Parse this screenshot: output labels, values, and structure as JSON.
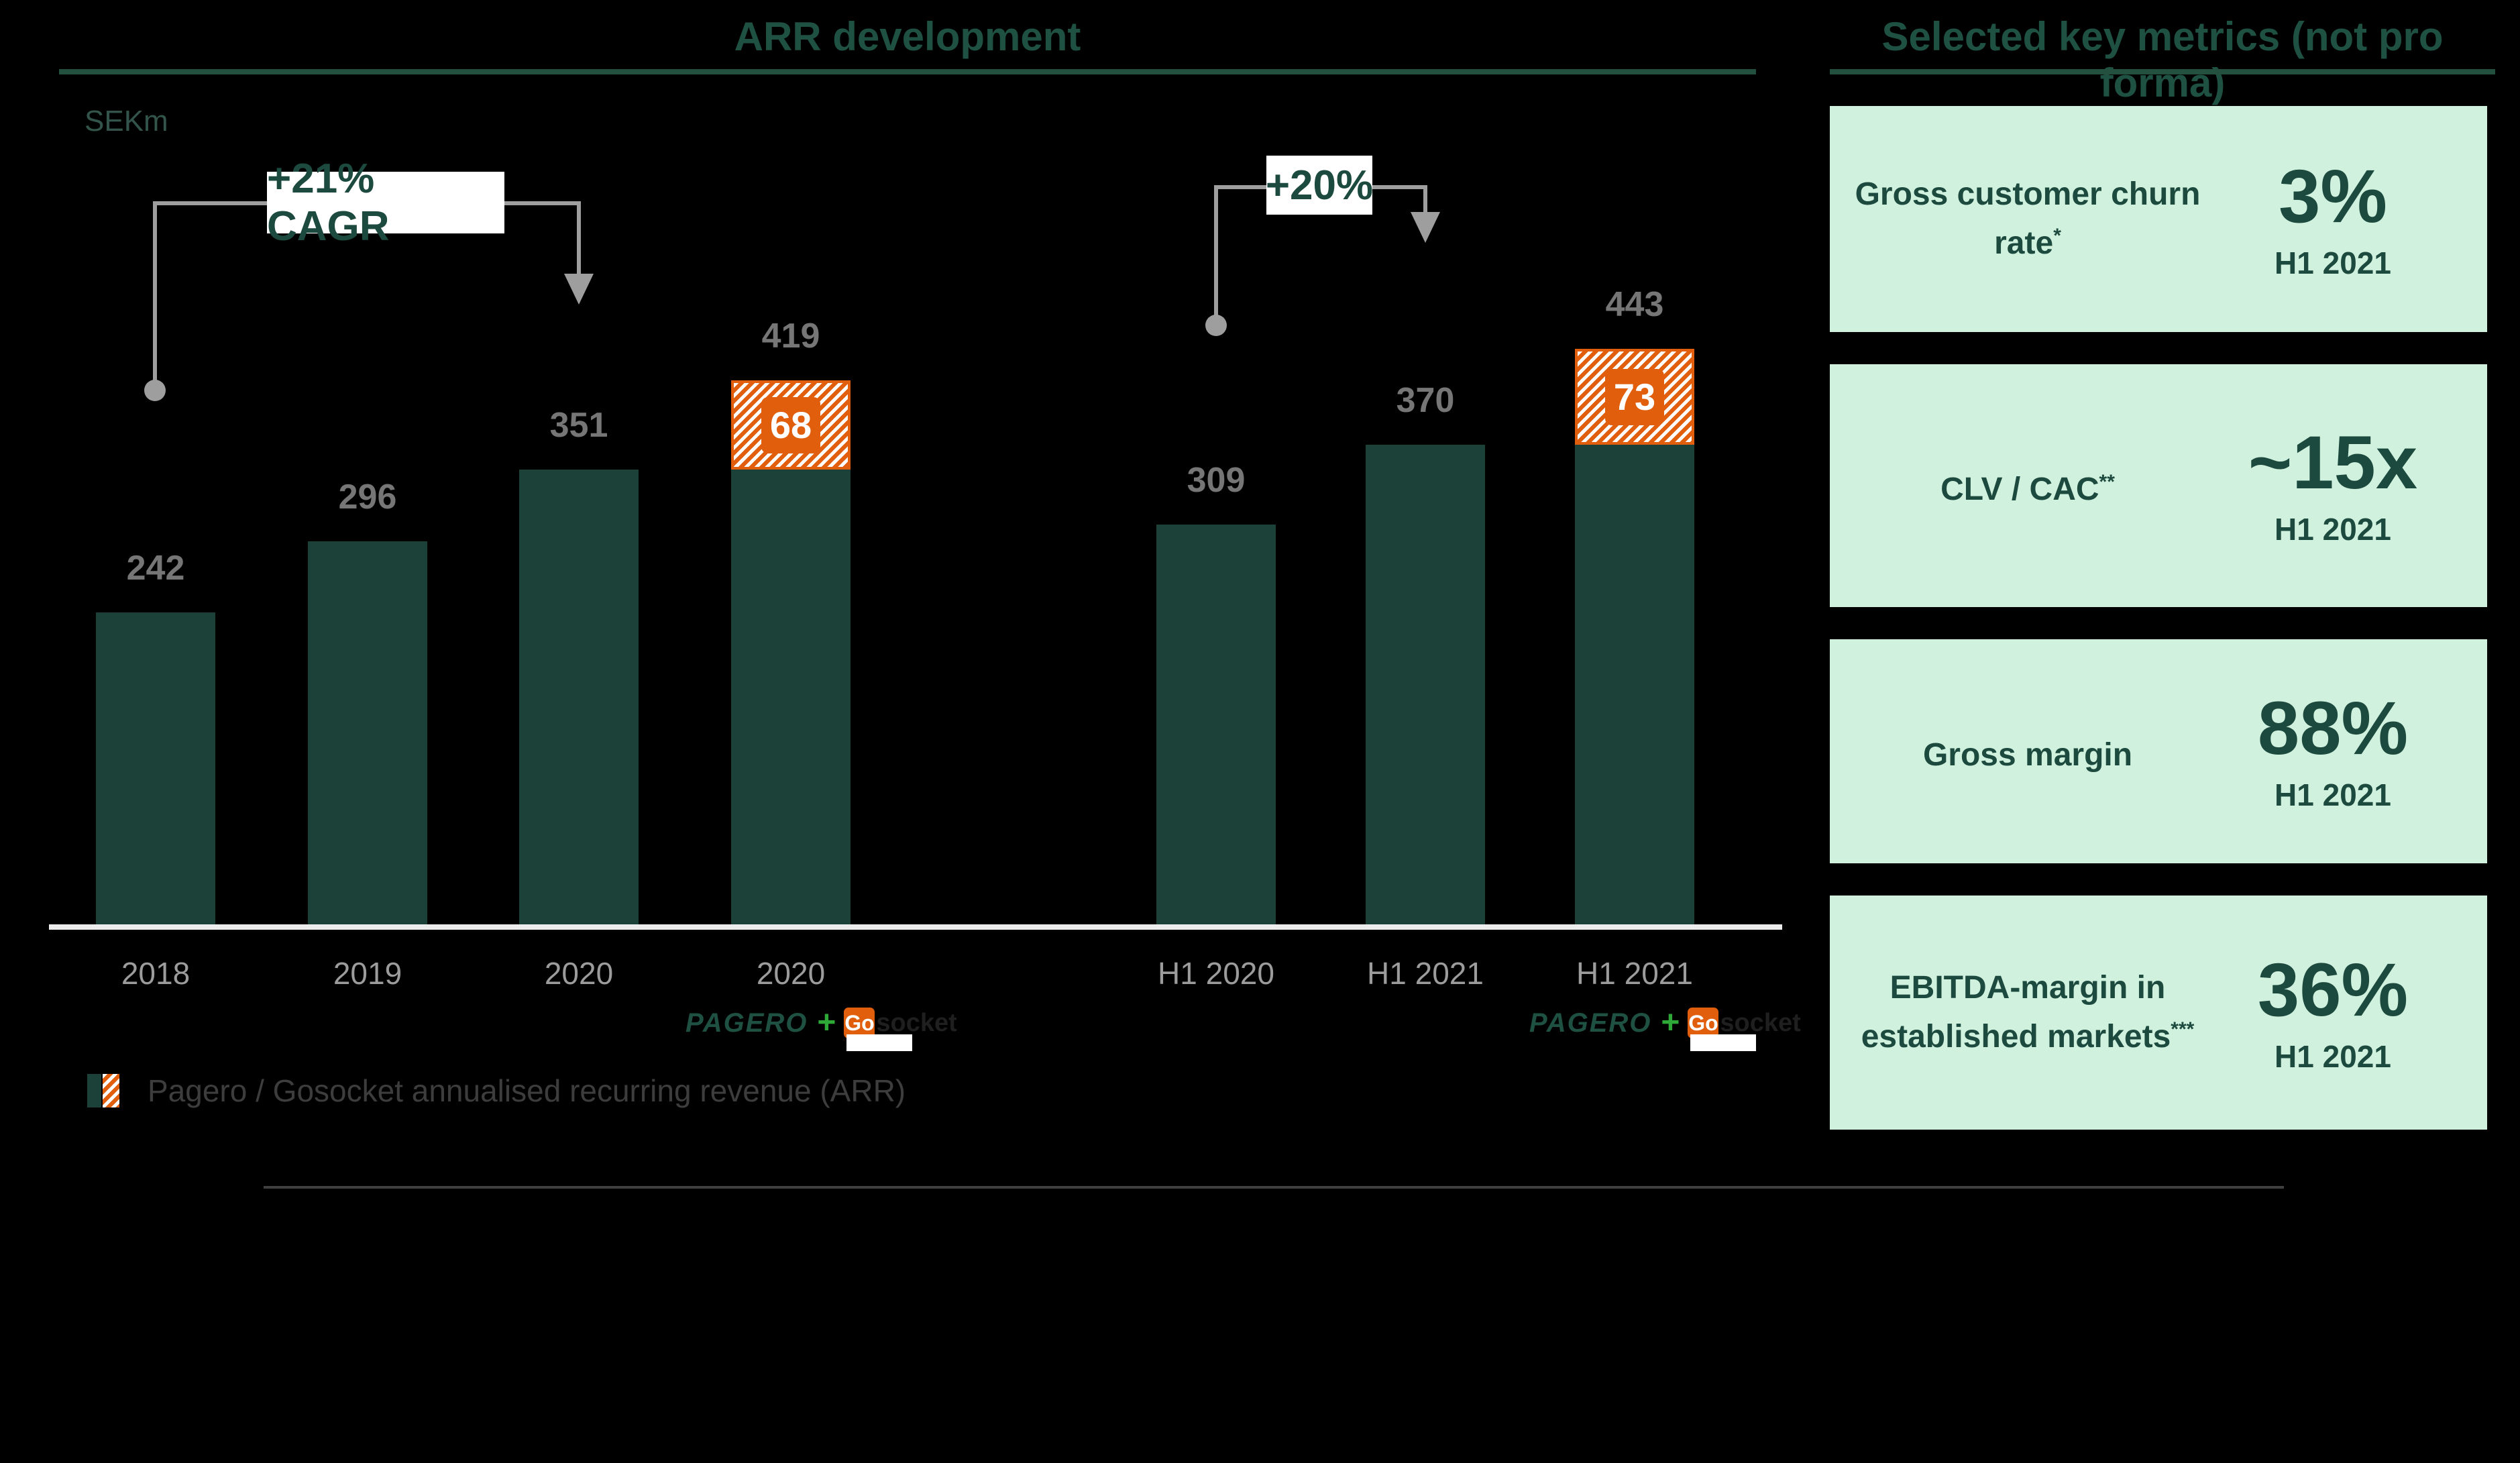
{
  "chart": {
    "title": "ARR development",
    "unit_label": "SEKm",
    "legend_label": "Pagero / Gosocket annualised recurring revenue (ARR)"
  },
  "chart_data": {
    "type": "bar",
    "title": "ARR development",
    "unit": "SEKm",
    "categories": [
      "2018",
      "2019",
      "2020",
      "2020",
      "H1 2020",
      "H1 2021",
      "H1 2021"
    ],
    "series": [
      {
        "name": "Pagero ARR",
        "values": [
          242,
          296,
          351,
          351,
          309,
          370,
          370
        ]
      },
      {
        "name": "Gosocket ARR addition",
        "values": [
          0,
          0,
          0,
          68,
          0,
          0,
          73
        ]
      }
    ],
    "totals": [
      242,
      296,
      351,
      419,
      309,
      370,
      443
    ],
    "addon_labels": [
      null,
      null,
      null,
      "68",
      null,
      null,
      "73"
    ],
    "annotations": [
      {
        "text": "+21% CAGR",
        "from": "2018",
        "to": "2020"
      },
      {
        "text": "+20%",
        "from": "H1 2020",
        "to": "H1 2021"
      }
    ],
    "legend": [
      "Pagero / Gosocket annualised recurring revenue (ARR)"
    ],
    "ylim": [
      0,
      460
    ],
    "grid": false,
    "legend_position": "bottom-left"
  },
  "logos": {
    "pagero": "PAGERO",
    "plus": "+",
    "go": "Go",
    "socket": "socket"
  },
  "metrics": {
    "title": "Selected key metrics (not pro forma)",
    "cards": [
      {
        "label": "Gross customer churn rate",
        "sup": "*",
        "value": "3%",
        "period": "H1 2021"
      },
      {
        "label": "CLV / CAC",
        "sup": "**",
        "value": "~15x",
        "period": "H1 2021"
      },
      {
        "label": "Gross margin",
        "sup": "",
        "value": "88%",
        "period": "H1 2021"
      },
      {
        "label": "EBITDA-margin in established markets",
        "sup": "***",
        "value": "36%",
        "period": "H1 2021"
      }
    ]
  },
  "colors": {
    "accent_teal": "#1F5143",
    "bar_teal": "#1B4138",
    "orange": "#E05E0C",
    "mint_card": "#D0F1DE",
    "card_text": "#1D4A3E",
    "annotation_gray": "#9E9E9E",
    "value_label_gray": "#767676",
    "tick_gray": "#9C9C9C",
    "legend_text_gray": "#3D3D3D",
    "axis_line": "#ECECEC",
    "divider_gray": "#3F3F3F",
    "gosocket_plus_green": "#2EA836",
    "background": "#000000"
  }
}
